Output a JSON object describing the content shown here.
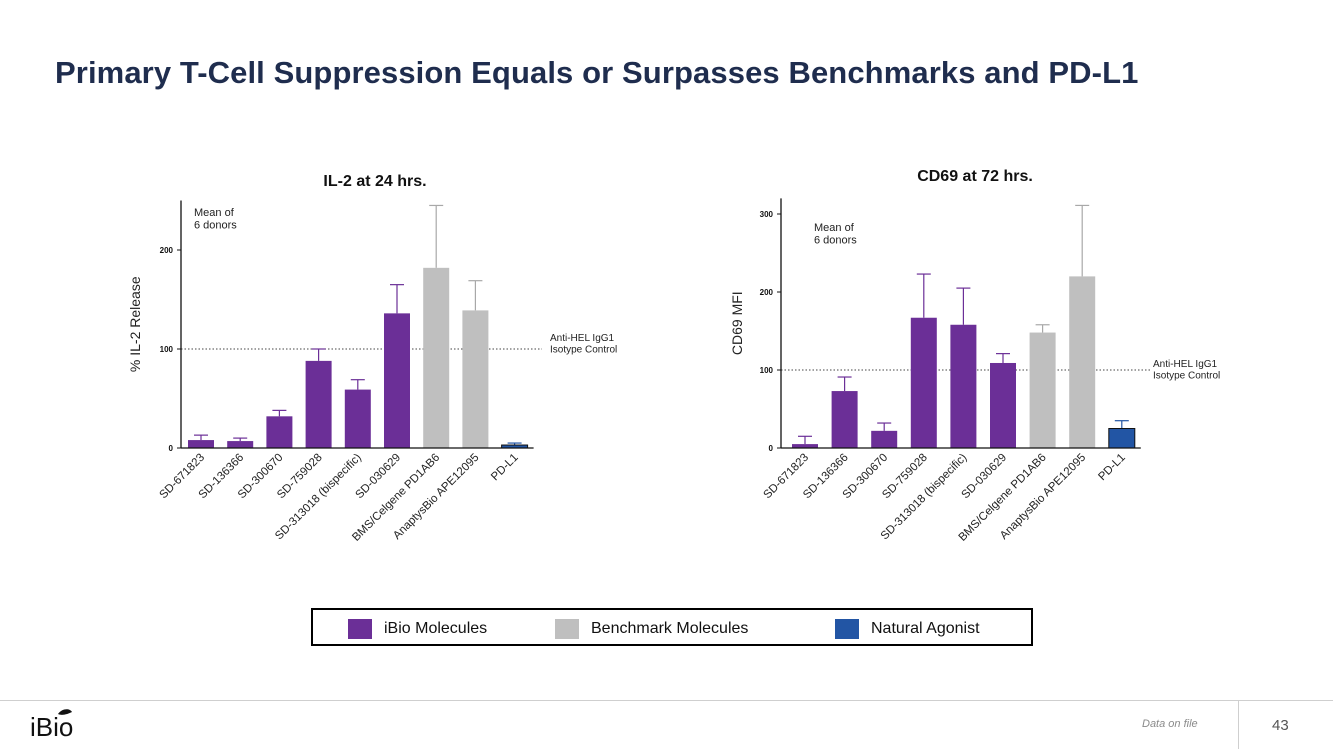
{
  "slide": {
    "title": "Primary T-Cell Suppression Equals or Surpasses Benchmarks and PD-L1",
    "footer_note": "Data on file",
    "page_number": "43",
    "logo_text": "iBio"
  },
  "colors": {
    "ibio": "#6b2f97",
    "benchmark": "#bfbfbf",
    "natural": "#2255a4",
    "title": "#1f2d4e"
  },
  "legend": {
    "items": [
      {
        "label": "iBio Molecules",
        "color": "#6b2f97"
      },
      {
        "label": "Benchmark Molecules",
        "color": "#bfbfbf"
      },
      {
        "label": "Natural Agonist",
        "color": "#2255a4"
      }
    ]
  },
  "chart_data": [
    {
      "type": "bar",
      "title": "IL-2 at 24 hrs.",
      "xlabel": "",
      "ylabel": "% IL-2 Release",
      "ylim": [
        0,
        250
      ],
      "yticks": [
        0,
        100,
        200
      ],
      "annotation": "Mean of\n6 donors",
      "reference_line": {
        "value": 100,
        "label": "Anti-HEL IgG1\nIsotype Control"
      },
      "categories": [
        "SD-671823",
        "SD-136366",
        "SD-300670",
        "SD-759028",
        "SD-313018 (bispecific)",
        "SD-030629",
        "BMS/Celgene PD1AB6",
        "AnaptysBio APE12095",
        "PD-L1"
      ],
      "groups": [
        "ibio",
        "ibio",
        "ibio",
        "ibio",
        "ibio",
        "ibio",
        "benchmark",
        "benchmark",
        "natural"
      ],
      "values": [
        8,
        7,
        32,
        88,
        59,
        136,
        182,
        139,
        3
      ],
      "errors": [
        5,
        3,
        6,
        12,
        10,
        29,
        63,
        30,
        2
      ]
    },
    {
      "type": "bar",
      "title": "CD69 at 72 hrs.",
      "xlabel": "",
      "ylabel": "CD69 MFI",
      "ylim": [
        0,
        320
      ],
      "yticks": [
        0,
        100,
        200,
        300
      ],
      "annotation": "Mean of\n6 donors",
      "reference_line": {
        "value": 100,
        "label": "Anti-HEL IgG1\nIsotype Control"
      },
      "categories": [
        "SD-671823",
        "SD-136366",
        "SD-300670",
        "SD-759028",
        "SD-313018 (bispecific)",
        "SD-030629",
        "BMS/Celgene PD1AB6",
        "AnaptysBio APE12095",
        "PD-L1"
      ],
      "groups": [
        "ibio",
        "ibio",
        "ibio",
        "ibio",
        "ibio",
        "ibio",
        "benchmark",
        "benchmark",
        "natural"
      ],
      "values": [
        5,
        73,
        22,
        167,
        158,
        109,
        148,
        220,
        25
      ],
      "errors": [
        10,
        18,
        10,
        56,
        47,
        12,
        10,
        91,
        10
      ]
    }
  ]
}
